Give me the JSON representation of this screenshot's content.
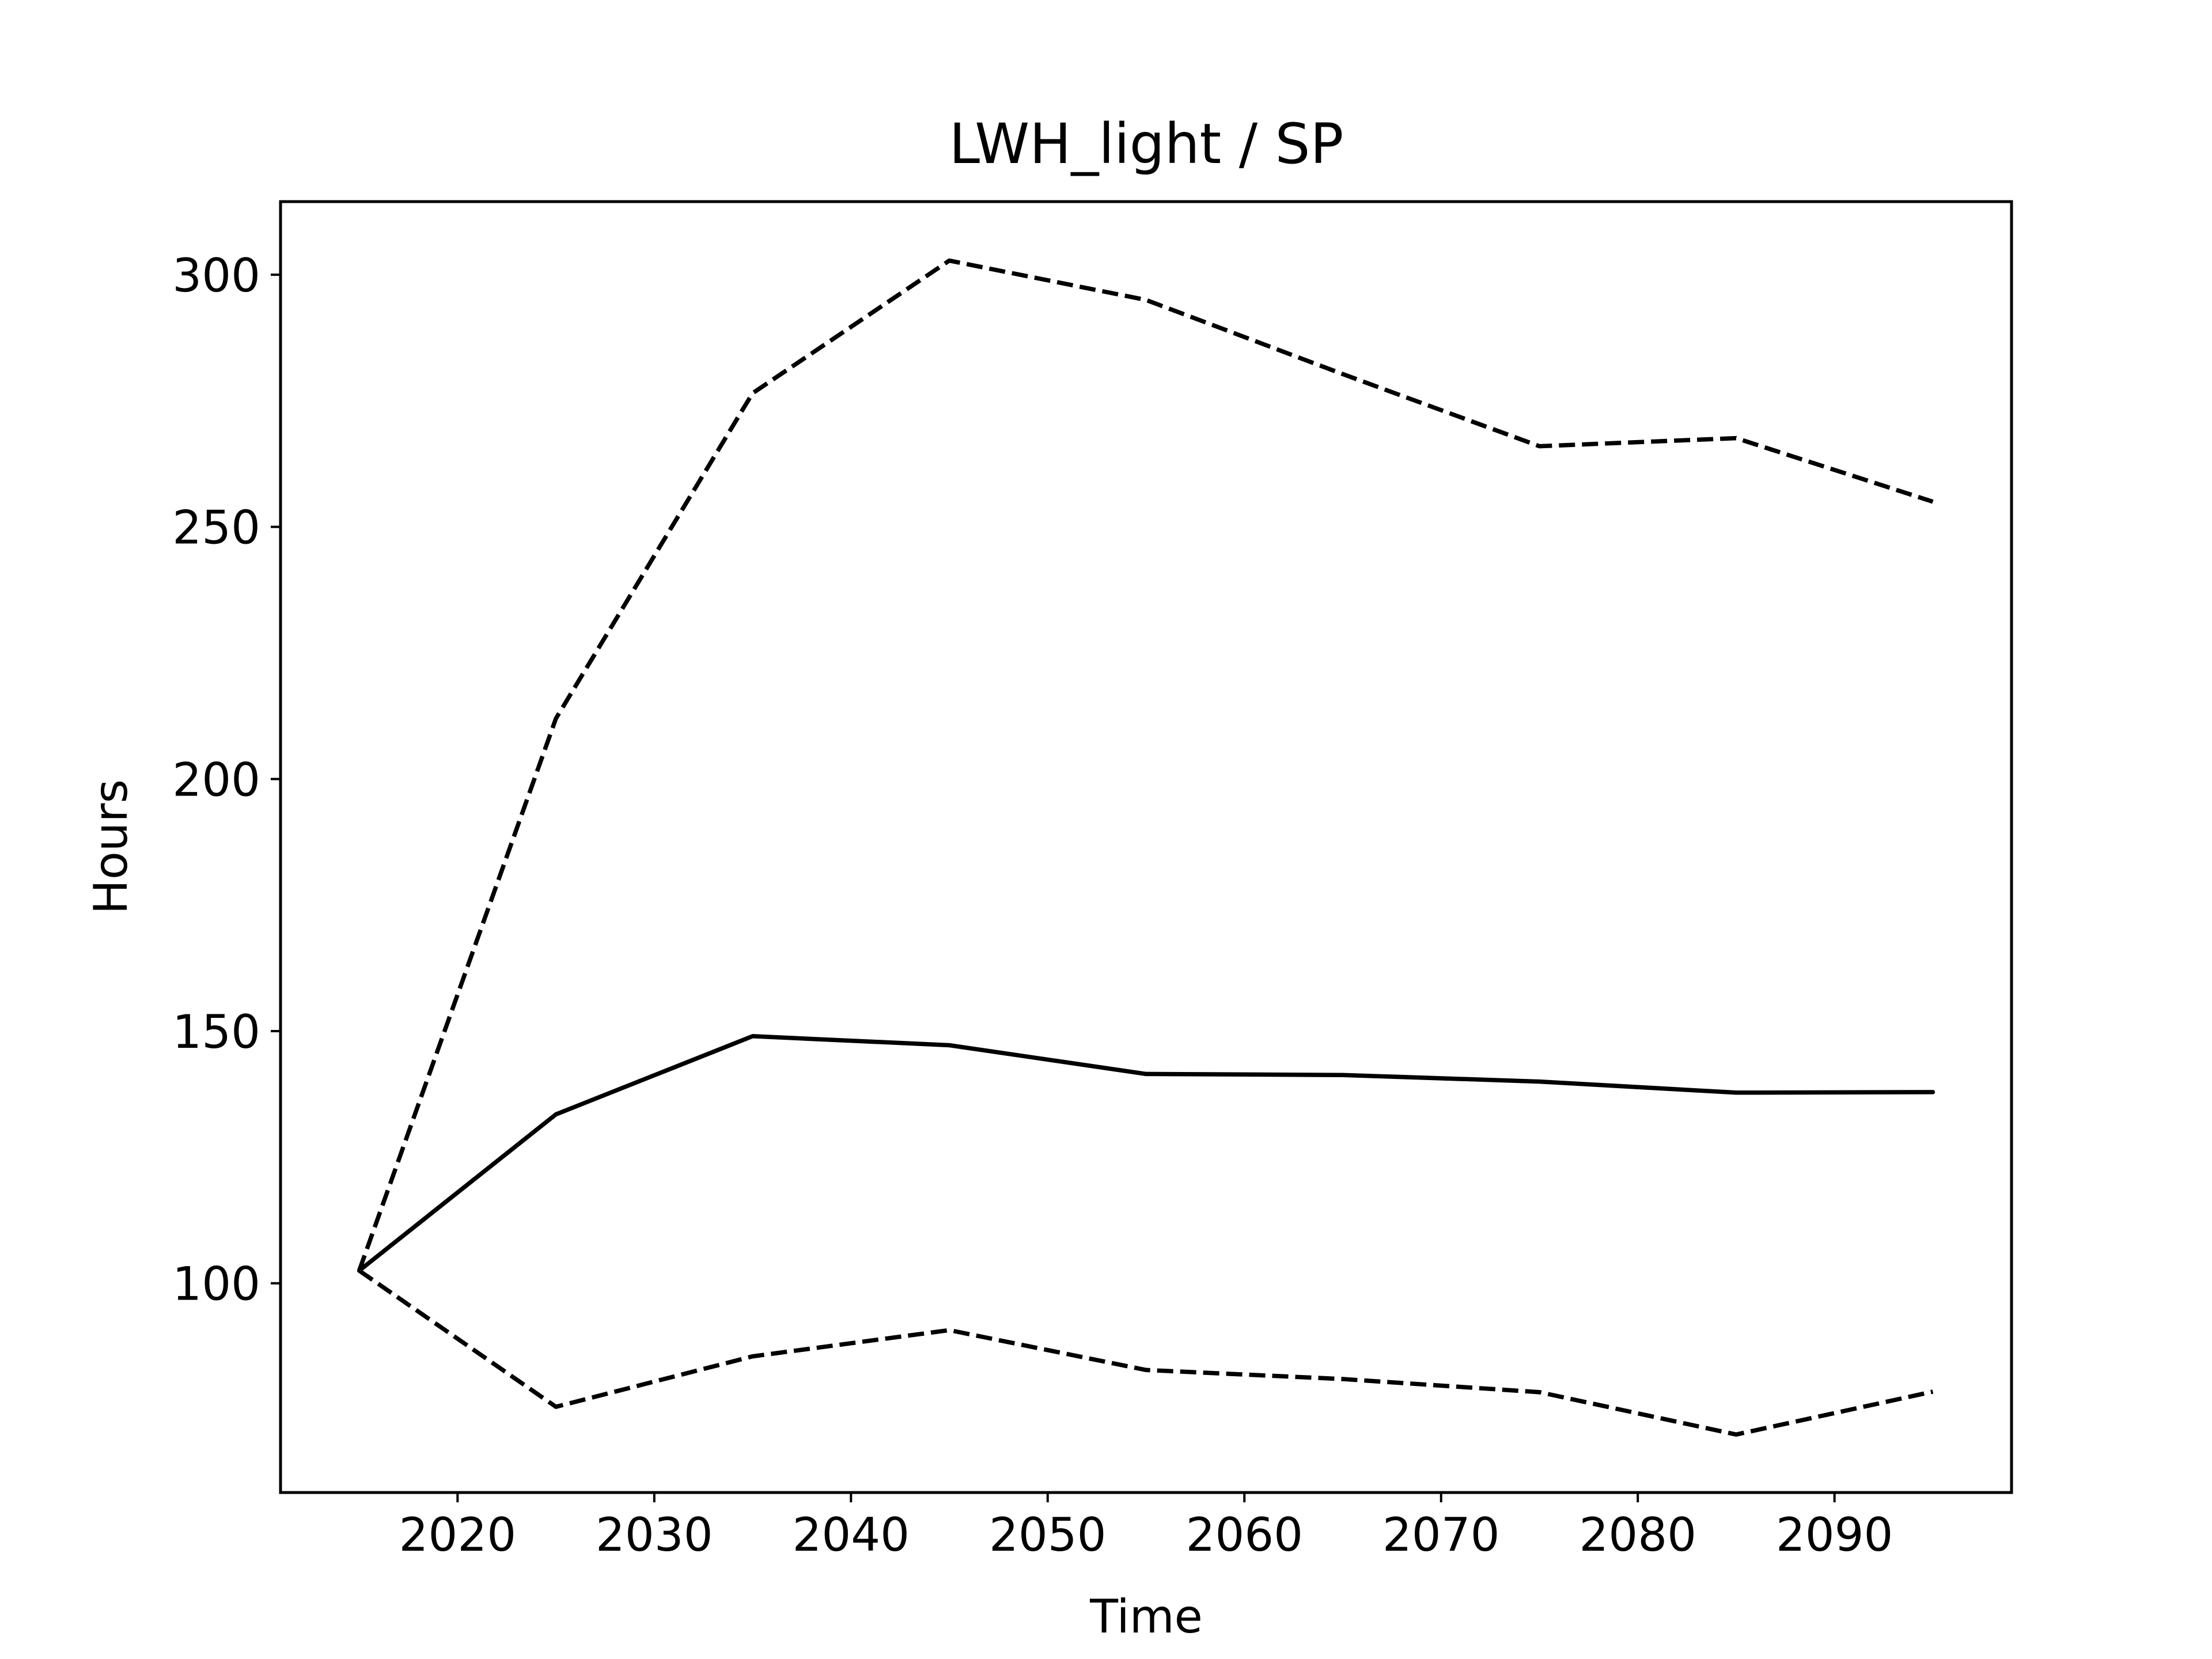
{
  "chart_data": {
    "type": "line",
    "title": "LWH_light / SP",
    "xlabel": "Time",
    "ylabel": "Hours",
    "xlim": [
      2011,
      2099
    ],
    "ylim": [
      58.5,
      314.5
    ],
    "xticks": [
      2020,
      2030,
      2040,
      2050,
      2060,
      2070,
      2080,
      2090
    ],
    "yticks": [
      100,
      150,
      200,
      250,
      300
    ],
    "x": [
      2015,
      2025,
      2035,
      2045,
      2055,
      2065,
      2075,
      2085,
      2095
    ],
    "series": [
      {
        "style": "solid",
        "color": "#000000",
        "values": [
          102.5,
          133.5,
          149.0,
          147.2,
          141.5,
          141.3,
          140.0,
          137.8,
          137.9
        ]
      },
      {
        "style": "dashed",
        "color": "#000000",
        "values": [
          102.5,
          212.0,
          276.5,
          302.8,
          295.0,
          280.3,
          266.0,
          267.6,
          255.0
        ]
      },
      {
        "style": "dashed",
        "color": "#000000",
        "values": [
          102.5,
          75.5,
          85.5,
          90.7,
          82.8,
          81.0,
          78.4,
          70.0,
          78.5
        ]
      }
    ],
    "grid": false,
    "legend": false
  }
}
